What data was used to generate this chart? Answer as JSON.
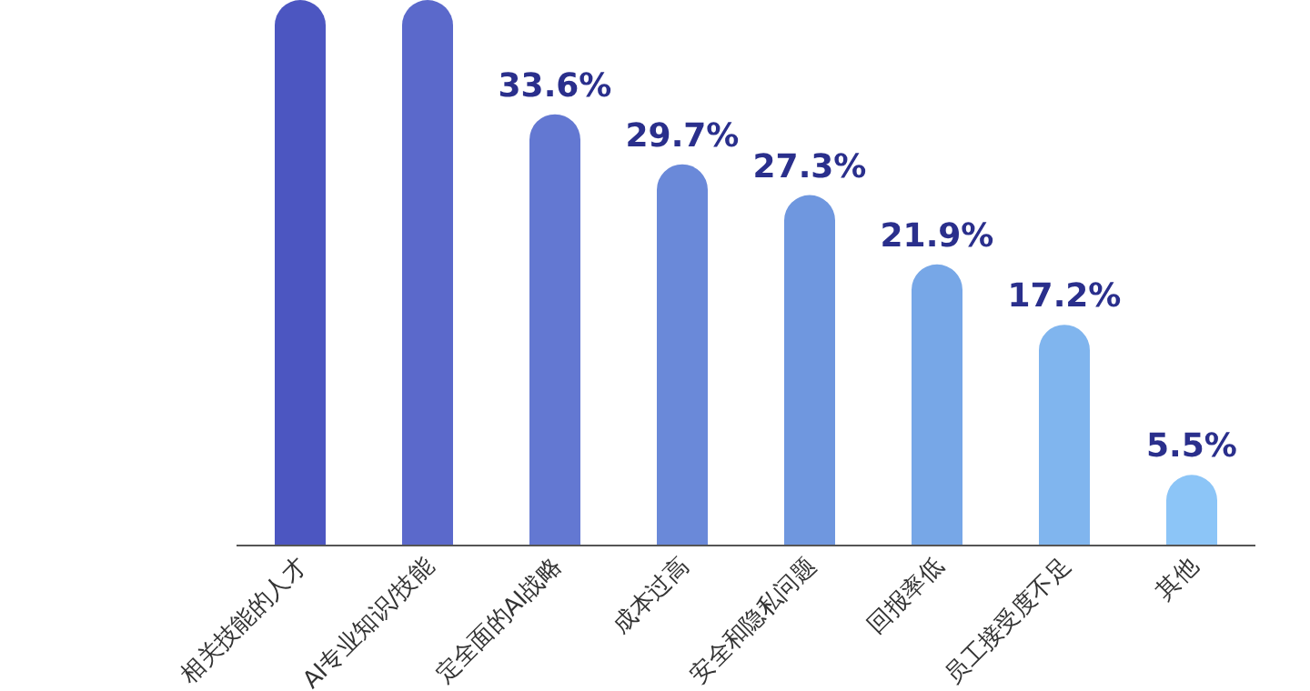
{
  "chart_data": {
    "type": "bar",
    "categories": [
      "相关技能的人才",
      "AI专业知识/技能",
      "定全面的AI战略",
      "成本过高",
      "安全和隐私问题",
      "回报率低",
      "员工接受度不足",
      "其他"
    ],
    "values": [
      42.5,
      42.5,
      33.6,
      29.7,
      27.3,
      21.9,
      17.2,
      5.5
    ],
    "value_labels": [
      null,
      null,
      "33.6%",
      "29.7%",
      "27.3%",
      "21.9%",
      "17.2%",
      "5.5%"
    ],
    "colors": [
      "#4c56c1",
      "#5b69cb",
      "#6378d2",
      "#6a89d9",
      "#6f97df",
      "#77a7e7",
      "#80b5ee",
      "#8cc5f7"
    ],
    "ylim": [
      0,
      42.5
    ]
  }
}
